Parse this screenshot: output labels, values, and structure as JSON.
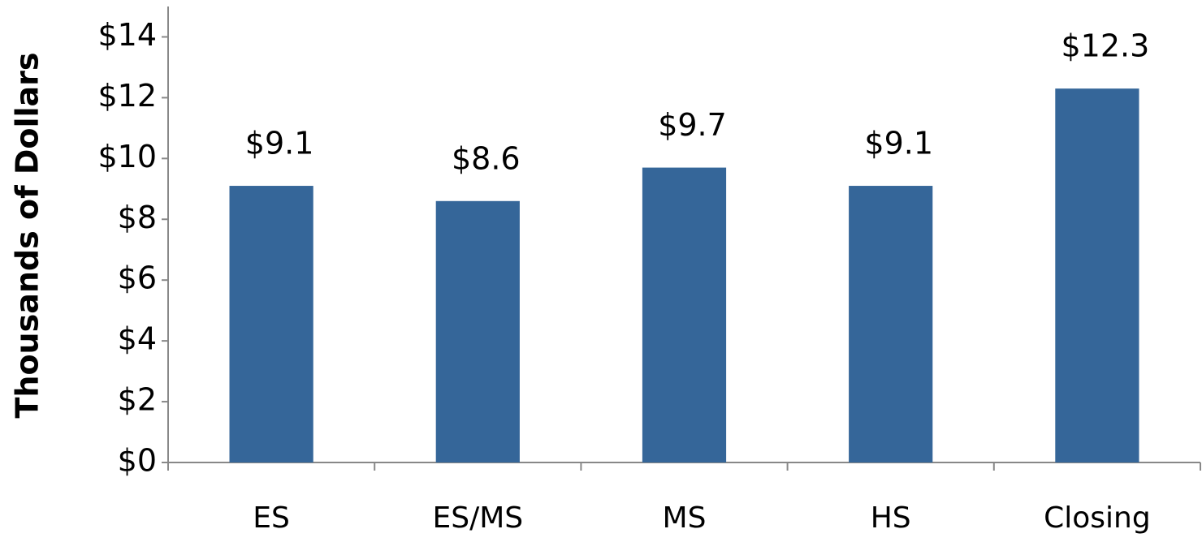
{
  "chart_data": {
    "type": "bar",
    "y_label": "Thousands of Dollars",
    "categories": [
      "ES",
      "ES/MS",
      "MS",
      "HS",
      "Closing"
    ],
    "values": [
      9.1,
      8.6,
      9.7,
      9.1,
      12.3
    ],
    "value_labels": [
      "$9.1",
      "$8.6",
      "$9.7",
      "$9.1",
      "$12.3"
    ],
    "color": "#356699",
    "ylim": [
      0,
      15
    ],
    "yticks": [
      {
        "value": 0,
        "label": "$0"
      },
      {
        "value": 2,
        "label": "$2"
      },
      {
        "value": 4,
        "label": "$4"
      },
      {
        "value": 6,
        "label": "$6"
      },
      {
        "value": 8,
        "label": "$8"
      },
      {
        "value": 10,
        "label": "$10"
      },
      {
        "value": 12,
        "label": "$12"
      },
      {
        "value": 14,
        "label": "$14"
      }
    ],
    "grid": false
  }
}
